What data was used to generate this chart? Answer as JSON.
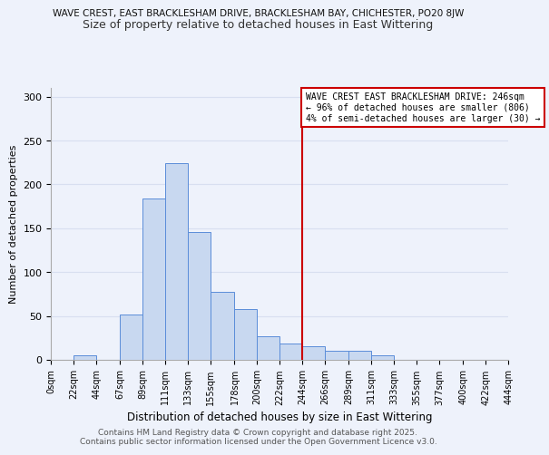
{
  "title_top": "WAVE CREST, EAST BRACKLESHAM DRIVE, BRACKLESHAM BAY, CHICHESTER, PO20 8JW",
  "title_sub": "Size of property relative to detached houses in East Wittering",
  "xlabel": "Distribution of detached houses by size in East Wittering",
  "ylabel": "Number of detached properties",
  "bar_edges": [
    0,
    22,
    44,
    67,
    89,
    111,
    133,
    155,
    178,
    200,
    222,
    244,
    266,
    289,
    311,
    333,
    355,
    377,
    400,
    422,
    444
  ],
  "bar_heights": [
    0,
    5,
    0,
    52,
    184,
    224,
    146,
    78,
    58,
    27,
    19,
    15,
    10,
    10,
    5,
    0,
    0,
    0,
    0,
    0
  ],
  "bar_color": "#c8d8f0",
  "bar_edge_color": "#5b8dd9",
  "vline_x": 244,
  "vline_color": "#cc0000",
  "annotation_text": "WAVE CREST EAST BRACKLESHAM DRIVE: 246sqm\n← 96% of detached houses are smaller (806)\n4% of semi-detached houses are larger (30) →",
  "annotation_box_color": "#ffffff",
  "annotation_box_edge": "#cc0000",
  "ylim": [
    0,
    310
  ],
  "yticks": [
    0,
    50,
    100,
    150,
    200,
    250,
    300
  ],
  "tick_labels": [
    "0sqm",
    "22sqm",
    "44sqm",
    "67sqm",
    "89sqm",
    "111sqm",
    "133sqm",
    "155sqm",
    "178sqm",
    "200sqm",
    "222sqm",
    "244sqm",
    "266sqm",
    "289sqm",
    "311sqm",
    "333sqm",
    "355sqm",
    "377sqm",
    "400sqm",
    "422sqm",
    "444sqm"
  ],
  "footer1": "Contains HM Land Registry data © Crown copyright and database right 2025.",
  "footer2": "Contains public sector information licensed under the Open Government Licence v3.0.",
  "bg_color": "#eef2fb",
  "grid_color": "#d8dff0"
}
